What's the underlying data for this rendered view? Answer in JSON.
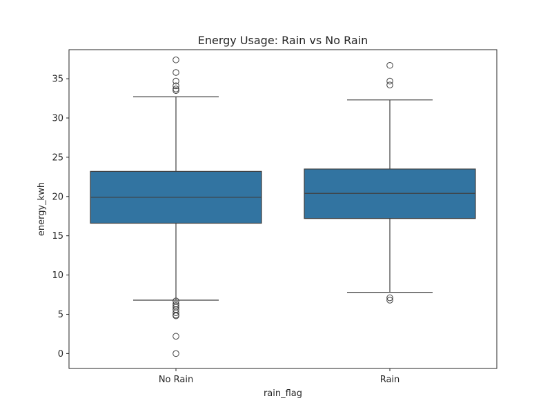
{
  "chart_data": {
    "type": "box",
    "title": "Energy Usage: Rain vs No Rain",
    "xlabel": "rain_flag",
    "ylabel": "energy_kwh",
    "categories": [
      "No Rain",
      "Rain"
    ],
    "ylim": [
      -1.9,
      38.7
    ],
    "yticks": [
      0,
      5,
      10,
      15,
      20,
      25,
      30,
      35
    ],
    "grid": false,
    "box_color": "#3274a1",
    "line_color": "#404040",
    "boxes": [
      {
        "category": "No Rain",
        "whisker_low": 6.8,
        "q1": 16.6,
        "median": 19.9,
        "q3": 23.2,
        "whisker_high": 32.7,
        "outliers": [
          37.4,
          35.8,
          34.7,
          34.1,
          33.7,
          33.5,
          6.7,
          6.3,
          6.1,
          5.9,
          5.6,
          5.2,
          4.9,
          4.8,
          2.2,
          0.0
        ]
      },
      {
        "category": "Rain",
        "whisker_low": 7.8,
        "q1": 17.2,
        "median": 20.4,
        "q3": 23.5,
        "whisker_high": 32.3,
        "outliers": [
          36.7,
          34.7,
          34.2,
          7.1,
          6.8
        ]
      }
    ]
  }
}
